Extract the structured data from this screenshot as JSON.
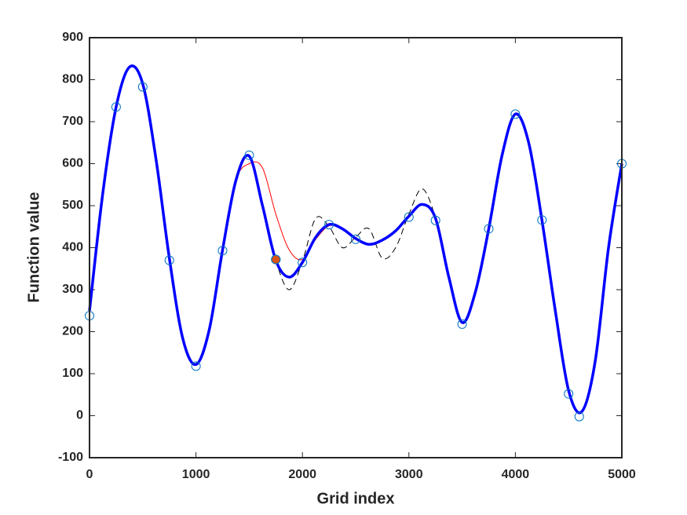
{
  "chart_data": {
    "type": "line",
    "xlabel": "Grid index",
    "ylabel": "Function value",
    "xlim": [
      0,
      5000
    ],
    "ylim": [
      -100,
      900
    ],
    "xticks": [
      0,
      1000,
      2000,
      3000,
      4000,
      5000
    ],
    "yticks": [
      -100,
      0,
      100,
      200,
      300,
      400,
      500,
      600,
      700,
      800,
      900
    ],
    "x": [
      0,
      125,
      250,
      375,
      500,
      625,
      750,
      875,
      1000,
      1125,
      1250,
      1375,
      1500,
      1625,
      1750,
      1875,
      2000,
      2125,
      2250,
      2375,
      2500,
      2625,
      2750,
      2875,
      3000,
      3125,
      3250,
      3375,
      3500,
      3625,
      3750,
      3875,
      4000,
      4125,
      4250,
      4375,
      4500,
      4625,
      4750,
      4875,
      5000
    ],
    "series": [
      {
        "type": "line",
        "color": "#000000",
        "width": 1,
        "dash": true,
        "values": [
          250,
          530,
          735,
          830,
          790,
          610,
          375,
          185,
          122,
          205,
          395,
          560,
          618,
          500,
          370,
          300,
          368,
          470,
          450,
          400,
          425,
          445,
          375,
          400,
          480,
          540,
          470,
          330,
          222,
          295,
          445,
          620,
          718,
          650,
          465,
          250,
          60,
          10,
          130,
          400,
          600
        ]
      },
      {
        "type": "line",
        "color": "#ff0000",
        "width": 1,
        "dash": false,
        "values": [
          250,
          530,
          735,
          830,
          790,
          610,
          375,
          185,
          122,
          205,
          395,
          560,
          600,
          590,
          480,
          395,
          372,
          420,
          452,
          445,
          422,
          408,
          418,
          440,
          475,
          503,
          470,
          330,
          222,
          295,
          445,
          620,
          718,
          650,
          465,
          250,
          60,
          10,
          130,
          400,
          600
        ]
      },
      {
        "type": "line",
        "color": "#0000ff",
        "width": 3.5,
        "dash": false,
        "values": [
          250,
          530,
          735,
          830,
          790,
          610,
          375,
          185,
          122,
          205,
          395,
          560,
          618,
          500,
          370,
          330,
          365,
          425,
          455,
          445,
          422,
          408,
          418,
          440,
          475,
          503,
          470,
          330,
          222,
          295,
          445,
          620,
          718,
          650,
          465,
          250,
          60,
          10,
          130,
          400,
          600
        ]
      },
      {
        "type": "scatter",
        "color": "#0072bd",
        "filled": false,
        "x": [
          0,
          250,
          500,
          750,
          1000,
          1250,
          1500,
          1750,
          2000,
          2250,
          2500,
          3000,
          3250,
          3500,
          3750,
          4000,
          4250,
          4500,
          4600,
          5000
        ],
        "values": [
          238,
          735,
          783,
          370,
          118,
          393,
          620,
          372,
          365,
          455,
          420,
          473,
          465,
          218,
          445,
          718,
          466,
          52,
          -2,
          600
        ]
      },
      {
        "type": "scatter",
        "color": "#d95319",
        "filled": true,
        "x": [
          1750
        ],
        "values": [
          372
        ]
      }
    ]
  }
}
